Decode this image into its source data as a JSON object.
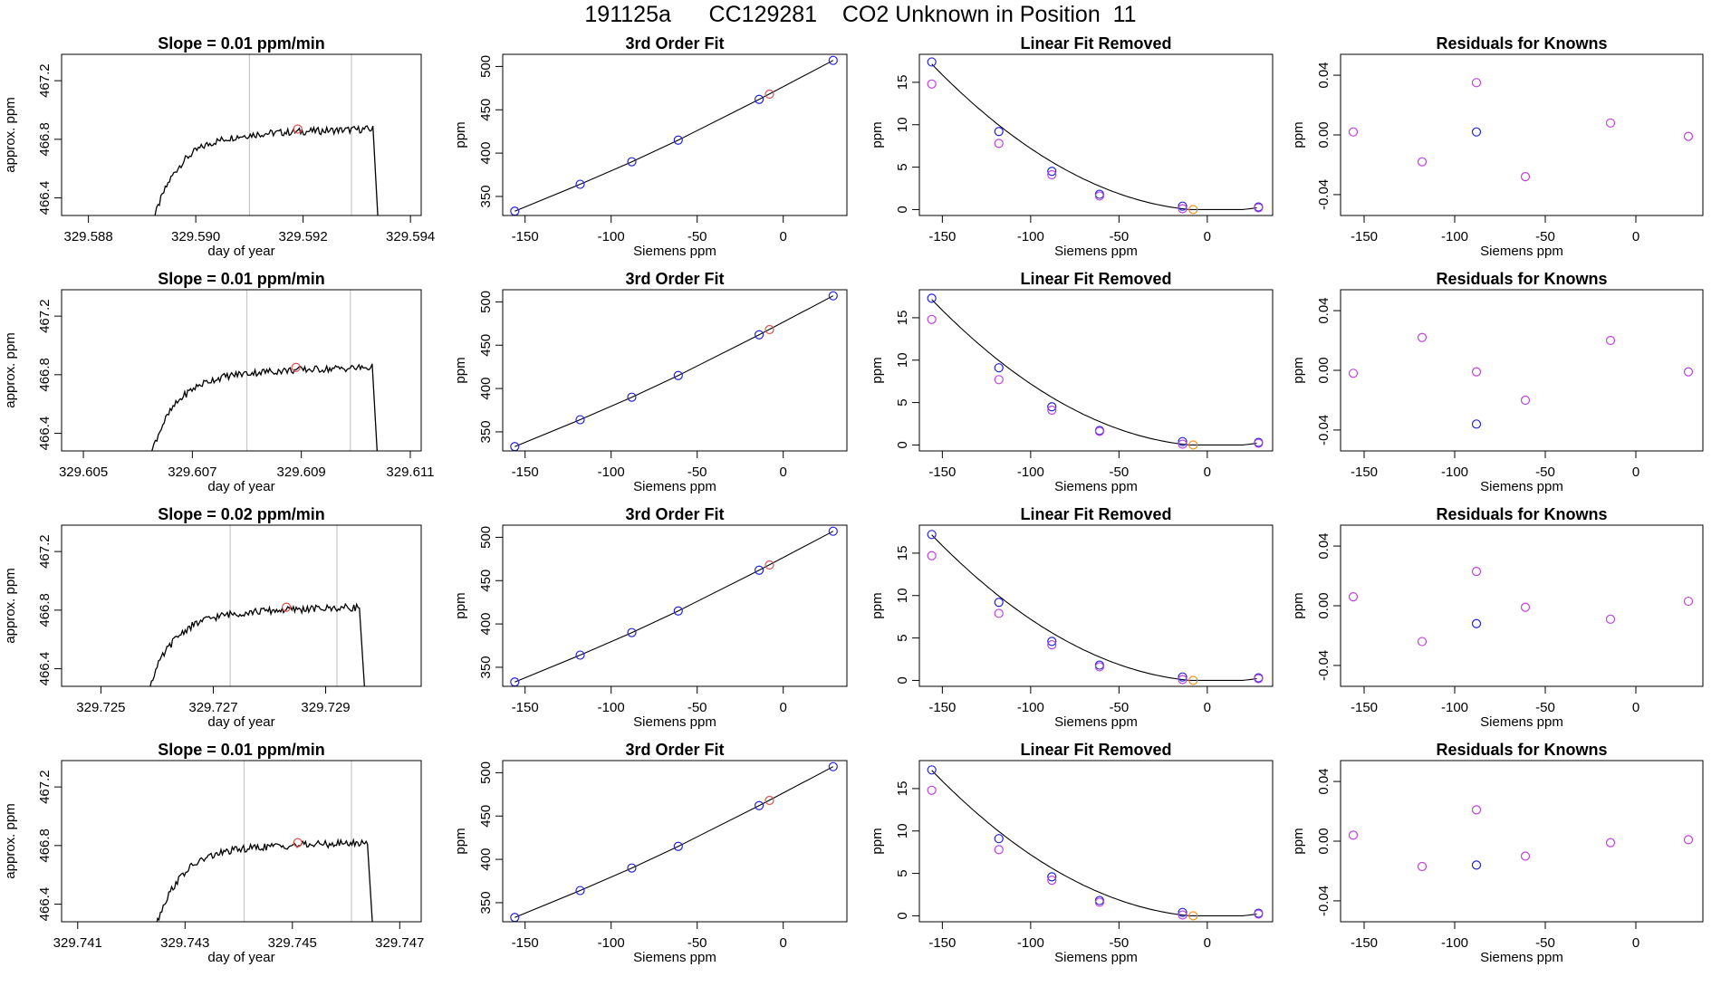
{
  "page": {
    "title": "191125a      CC129281    CO2 Unknown in Position  11"
  },
  "axis_labels": {
    "time_x": "day of year",
    "time_y": "approx. ppm",
    "fit_x": "Siemens ppm",
    "fit_y": "ppm",
    "lin_y": "ppm",
    "res_y": "ppm"
  },
  "colors": {
    "line": "#000000",
    "frame": "#000000",
    "marker": "#e05050",
    "known": "#2222dd",
    "removed": "#c040e0",
    "unknown": "#ff8800",
    "vline": "#c8c8c8"
  },
  "chart_data": [
    {
      "type": "line",
      "panel": "time",
      "title": "Slope =  0.01  ppm/min",
      "xlabel": "day of year",
      "ylabel": "approx. ppm",
      "xlim": [
        329.5875,
        329.5942
      ],
      "ylim": [
        466.28,
        467.38
      ],
      "xticks": [
        329.588,
        329.59,
        329.592,
        329.594
      ],
      "xtick_labels": [
        "329.588",
        "329.590",
        "329.592",
        "329.594"
      ],
      "yticks": [
        466.4,
        466.8,
        467.2
      ],
      "ytick_labels": [
        "466.4",
        "466.8",
        "467.2"
      ],
      "vlines": [
        329.591,
        329.5929
      ],
      "trace": {
        "start": 329.589,
        "end": 329.5933,
        "base": 466.87,
        "drop_end": 329.5934
      },
      "marker": [
        329.5919,
        466.87
      ]
    },
    {
      "type": "scatter",
      "panel": "fit",
      "title": "3rd Order Fit",
      "xlabel": "Siemens ppm",
      "ylabel": "ppm",
      "xlim": [
        -163,
        37
      ],
      "ylim": [
        328,
        514
      ],
      "xticks": [
        -150,
        -100,
        -50,
        0
      ],
      "xtick_labels": [
        "-150",
        "-100",
        "-50",
        "0"
      ],
      "yticks": [
        350,
        400,
        450,
        500
      ],
      "ytick_labels": [
        "350",
        "400",
        "450",
        "500"
      ],
      "known_x": [
        -156,
        -118,
        -88,
        -61,
        -14,
        29
      ],
      "known_y": [
        333,
        364,
        390,
        415,
        462,
        507
      ],
      "unknown": [
        -8,
        468
      ]
    },
    {
      "type": "scatter",
      "panel": "lin",
      "title": "Linear Fit Removed",
      "xlabel": "Siemens ppm",
      "ylabel": "ppm",
      "xlim": [
        -163,
        37
      ],
      "ylim": [
        -0.7,
        18.3
      ],
      "xticks": [
        -150,
        -100,
        -50,
        0
      ],
      "xtick_labels": [
        "-150",
        "-100",
        "-50",
        "0"
      ],
      "yticks": [
        0,
        5,
        10,
        15
      ],
      "ytick_labels": [
        "0",
        "5",
        "10",
        "15"
      ],
      "known_x": [
        -156,
        -118,
        -88,
        -61,
        -14,
        29
      ],
      "known_y": [
        17.4,
        9.2,
        4.5,
        1.8,
        0.4,
        0.3
      ],
      "removed_y": [
        14.8,
        7.8,
        4.1,
        1.6,
        0.1,
        0.2
      ],
      "unknown": [
        -8,
        0.0
      ]
    },
    {
      "type": "scatter",
      "panel": "res",
      "title": "Residuals for Knowns",
      "xlabel": "Siemens ppm",
      "ylabel": "ppm",
      "xlim": [
        -163,
        37
      ],
      "ylim": [
        -0.054,
        0.054
      ],
      "xticks": [
        -150,
        -100,
        -50,
        0
      ],
      "xtick_labels": [
        "-150",
        "-100",
        "-50",
        "0"
      ],
      "yticks": [
        -0.04,
        0.0,
        0.04
      ],
      "ytick_labels": [
        "-0.04",
        "0.00",
        "0.04"
      ],
      "blue": [
        -88,
        0.002
      ],
      "points_x": [
        -156,
        -118,
        -88,
        -61,
        -14,
        29
      ],
      "points_y": [
        0.002,
        -0.018,
        0.035,
        -0.028,
        0.008,
        -0.001
      ]
    },
    {
      "type": "line",
      "panel": "time",
      "title": "Slope =  0.01  ppm/min",
      "xlabel": "day of year",
      "ylabel": "approx. ppm",
      "xlim": [
        329.6046,
        329.6112
      ],
      "ylim": [
        466.28,
        467.38
      ],
      "xticks": [
        329.605,
        329.607,
        329.609,
        329.611
      ],
      "xtick_labels": [
        "329.605",
        "329.607",
        "329.609",
        "329.611"
      ],
      "yticks": [
        466.4,
        466.8,
        467.2
      ],
      "ytick_labels": [
        "466.4",
        "466.8",
        "467.2"
      ],
      "vlines": [
        329.608,
        329.6099
      ],
      "trace": {
        "start": 329.606,
        "end": 329.6103,
        "base": 466.85,
        "drop_end": 329.6104
      },
      "marker": [
        329.6089,
        466.85
      ]
    },
    {
      "type": "scatter",
      "panel": "fit",
      "title": "3rd Order Fit",
      "xlabel": "Siemens ppm",
      "ylabel": "ppm",
      "xlim": [
        -163,
        37
      ],
      "ylim": [
        328,
        514
      ],
      "xticks": [
        -150,
        -100,
        -50,
        0
      ],
      "xtick_labels": [
        "-150",
        "-100",
        "-50",
        "0"
      ],
      "yticks": [
        350,
        400,
        450,
        500
      ],
      "ytick_labels": [
        "350",
        "400",
        "450",
        "500"
      ],
      "known_x": [
        -156,
        -118,
        -88,
        -61,
        -14,
        29
      ],
      "known_y": [
        333,
        364,
        390,
        415,
        462,
        507
      ],
      "unknown": [
        -8,
        468
      ]
    },
    {
      "type": "scatter",
      "panel": "lin",
      "title": "Linear Fit Removed",
      "xlabel": "Siemens ppm",
      "ylabel": "ppm",
      "xlim": [
        -163,
        37
      ],
      "ylim": [
        -0.7,
        18.3
      ],
      "xticks": [
        -150,
        -100,
        -50,
        0
      ],
      "xtick_labels": [
        "-150",
        "-100",
        "-50",
        "0"
      ],
      "yticks": [
        0,
        5,
        10,
        15
      ],
      "ytick_labels": [
        "0",
        "5",
        "10",
        "15"
      ],
      "known_x": [
        -156,
        -118,
        -88,
        -61,
        -14,
        29
      ],
      "known_y": [
        17.3,
        9.1,
        4.5,
        1.7,
        0.4,
        0.3
      ],
      "removed_y": [
        14.8,
        7.7,
        4.1,
        1.6,
        0.1,
        0.2
      ],
      "unknown": [
        -8,
        0.0
      ]
    },
    {
      "type": "scatter",
      "panel": "res",
      "title": "Residuals for Knowns",
      "xlabel": "Siemens ppm",
      "ylabel": "ppm",
      "xlim": [
        -163,
        37
      ],
      "ylim": [
        -0.054,
        0.054
      ],
      "xticks": [
        -150,
        -100,
        -50,
        0
      ],
      "xtick_labels": [
        "-150",
        "-100",
        "-50",
        "0"
      ],
      "yticks": [
        -0.04,
        0.0,
        0.04
      ],
      "ytick_labels": [
        "-0.04",
        "0.00",
        "0.04"
      ],
      "blue": [
        -88,
        -0.036
      ],
      "points_x": [
        -156,
        -118,
        -88,
        -61,
        -14,
        29
      ],
      "points_y": [
        -0.002,
        0.022,
        -0.001,
        -0.02,
        0.02,
        -0.001
      ]
    },
    {
      "type": "line",
      "panel": "time",
      "title": "Slope =  0.02  ppm/min",
      "xlabel": "day of year",
      "ylabel": "approx. ppm",
      "xlim": [
        329.7243,
        329.7307
      ],
      "ylim": [
        466.28,
        467.38
      ],
      "xticks": [
        329.725,
        329.727,
        329.729
      ],
      "xtick_labels": [
        "329.725",
        "329.727",
        "329.729"
      ],
      "yticks": [
        466.4,
        466.8,
        467.2
      ],
      "ytick_labels": [
        "466.4",
        "466.8",
        "467.2"
      ],
      "vlines": [
        329.7273,
        329.7292
      ],
      "trace": {
        "start": 329.7256,
        "end": 329.7296,
        "base": 466.82,
        "drop_end": 329.7297
      },
      "marker": [
        329.7283,
        466.82
      ]
    },
    {
      "type": "scatter",
      "panel": "fit",
      "title": "3rd Order Fit",
      "xlabel": "Siemens ppm",
      "ylabel": "ppm",
      "xlim": [
        -163,
        37
      ],
      "ylim": [
        328,
        514
      ],
      "xticks": [
        -150,
        -100,
        -50,
        0
      ],
      "xtick_labels": [
        "-150",
        "-100",
        "-50",
        "0"
      ],
      "yticks": [
        350,
        400,
        450,
        500
      ],
      "ytick_labels": [
        "350",
        "400",
        "450",
        "500"
      ],
      "known_x": [
        -156,
        -118,
        -88,
        -61,
        -14,
        29
      ],
      "known_y": [
        333,
        364,
        390,
        415,
        462,
        507
      ],
      "unknown": [
        -8,
        468
      ]
    },
    {
      "type": "scatter",
      "panel": "lin",
      "title": "Linear Fit Removed",
      "xlabel": "Siemens ppm",
      "ylabel": "ppm",
      "xlim": [
        -163,
        37
      ],
      "ylim": [
        -0.7,
        18.3
      ],
      "xticks": [
        -150,
        -100,
        -50,
        0
      ],
      "xtick_labels": [
        "-150",
        "-100",
        "-50",
        "0"
      ],
      "yticks": [
        0,
        5,
        10,
        15
      ],
      "ytick_labels": [
        "0",
        "5",
        "10",
        "15"
      ],
      "known_x": [
        -156,
        -118,
        -88,
        -61,
        -14,
        29
      ],
      "known_y": [
        17.2,
        9.2,
        4.6,
        1.8,
        0.4,
        0.3
      ],
      "removed_y": [
        14.7,
        7.9,
        4.2,
        1.6,
        0.1,
        0.2
      ],
      "unknown": [
        -8,
        0.0
      ]
    },
    {
      "type": "scatter",
      "panel": "res",
      "title": "Residuals for Knowns",
      "xlabel": "Siemens ppm",
      "ylabel": "ppm",
      "xlim": [
        -163,
        37
      ],
      "ylim": [
        -0.054,
        0.054
      ],
      "xticks": [
        -150,
        -100,
        -50,
        0
      ],
      "xtick_labels": [
        "-150",
        "-100",
        "-50",
        "0"
      ],
      "yticks": [
        -0.04,
        0.0,
        0.04
      ],
      "ytick_labels": [
        "-0.04",
        "0.00",
        "0.04"
      ],
      "blue": [
        -88,
        -0.012
      ],
      "points_x": [
        -156,
        -118,
        -88,
        -61,
        -14,
        29
      ],
      "points_y": [
        0.006,
        -0.024,
        0.023,
        -0.001,
        -0.009,
        0.003
      ]
    },
    {
      "type": "line",
      "panel": "time",
      "title": "Slope =  0.01  ppm/min",
      "xlabel": "day of year",
      "ylabel": "approx. ppm",
      "xlim": [
        329.7407,
        329.7474
      ],
      "ylim": [
        466.28,
        467.38
      ],
      "xticks": [
        329.741,
        329.743,
        329.745,
        329.747
      ],
      "xtick_labels": [
        "329.741",
        "329.743",
        "329.745",
        "329.747"
      ],
      "yticks": [
        466.4,
        466.8,
        467.2
      ],
      "ytick_labels": [
        "466.4",
        "466.8",
        "467.2"
      ],
      "vlines": [
        329.7441,
        329.7461
      ],
      "trace": {
        "start": 329.7422,
        "end": 329.7464,
        "base": 466.82,
        "drop_end": 329.7465
      },
      "marker": [
        329.7451,
        466.82
      ]
    },
    {
      "type": "scatter",
      "panel": "fit",
      "title": "3rd Order Fit",
      "xlabel": "Siemens ppm",
      "ylabel": "ppm",
      "xlim": [
        -163,
        37
      ],
      "ylim": [
        328,
        514
      ],
      "xticks": [
        -150,
        -100,
        -50,
        0
      ],
      "xtick_labels": [
        "-150",
        "-100",
        "-50",
        "0"
      ],
      "yticks": [
        350,
        400,
        450,
        500
      ],
      "ytick_labels": [
        "350",
        "400",
        "450",
        "500"
      ],
      "known_x": [
        -156,
        -118,
        -88,
        -61,
        -14,
        29
      ],
      "known_y": [
        333,
        364,
        390,
        415,
        462,
        507
      ],
      "unknown": [
        -8,
        468
      ]
    },
    {
      "type": "scatter",
      "panel": "lin",
      "title": "Linear Fit Removed",
      "xlabel": "Siemens ppm",
      "ylabel": "ppm",
      "xlim": [
        -163,
        37
      ],
      "ylim": [
        -0.7,
        18.3
      ],
      "xticks": [
        -150,
        -100,
        -50,
        0
      ],
      "xtick_labels": [
        "-150",
        "-100",
        "-50",
        "0"
      ],
      "yticks": [
        0,
        5,
        10,
        15
      ],
      "ytick_labels": [
        "0",
        "5",
        "10",
        "15"
      ],
      "known_x": [
        -156,
        -118,
        -88,
        -61,
        -14,
        29
      ],
      "known_y": [
        17.2,
        9.1,
        4.6,
        1.8,
        0.4,
        0.3
      ],
      "removed_y": [
        14.8,
        7.8,
        4.2,
        1.6,
        0.1,
        0.2
      ],
      "unknown": [
        -8,
        0.0
      ]
    },
    {
      "type": "scatter",
      "panel": "res",
      "title": "Residuals for Knowns",
      "xlabel": "Siemens ppm",
      "ylabel": "ppm",
      "xlim": [
        -163,
        37
      ],
      "ylim": [
        -0.054,
        0.054
      ],
      "xticks": [
        -150,
        -100,
        -50,
        0
      ],
      "xtick_labels": [
        "-150",
        "-100",
        "-50",
        "0"
      ],
      "yticks": [
        -0.04,
        0.0,
        0.04
      ],
      "ytick_labels": [
        "-0.04",
        "0.00",
        "0.04"
      ],
      "blue": [
        -88,
        -0.016
      ],
      "points_x": [
        -156,
        -118,
        -88,
        -61,
        -14,
        29
      ],
      "points_y": [
        0.004,
        -0.017,
        0.021,
        -0.01,
        -0.001,
        0.001
      ]
    }
  ]
}
